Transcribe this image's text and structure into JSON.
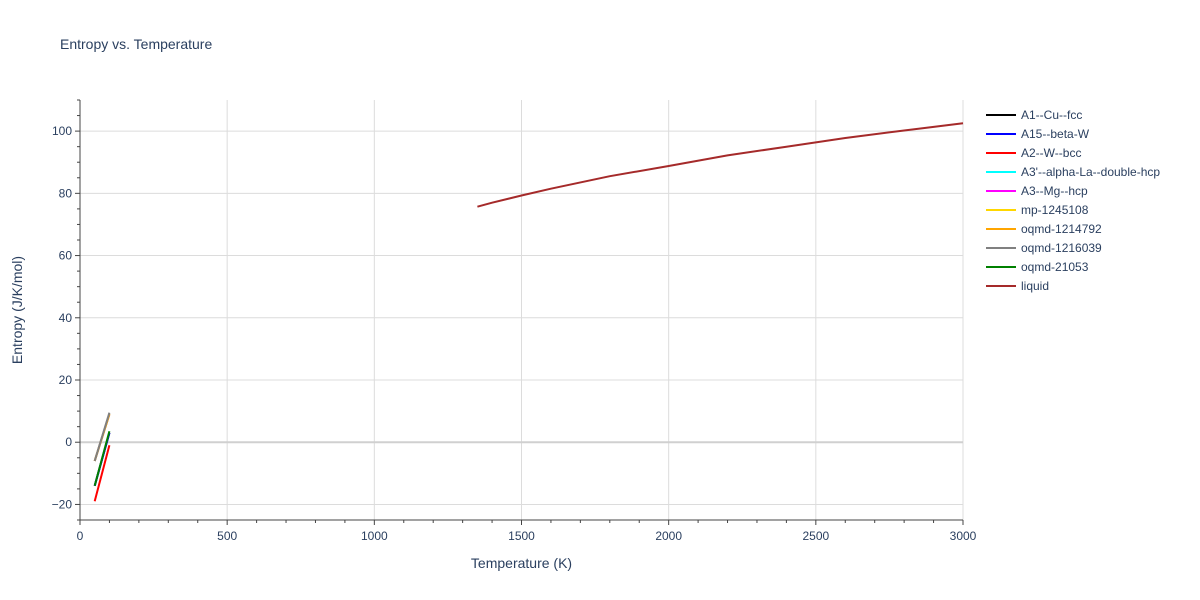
{
  "chart_data": {
    "type": "line",
    "title": "Entropy vs. Temperature",
    "xlabel": "Temperature (K)",
    "ylabel": "Entropy (J/K/mol)",
    "xlim": [
      0,
      3000
    ],
    "ylim": [
      -25,
      110
    ],
    "x_ticks": [
      0,
      500,
      1000,
      1500,
      2000,
      2500,
      3000
    ],
    "y_ticks": [
      -20,
      0,
      20,
      40,
      60,
      80,
      100
    ],
    "grid": true,
    "legend_position": "right",
    "series": [
      {
        "name": "A1--Cu--fcc",
        "color": "#000000",
        "x": [
          50,
          100
        ],
        "y": [
          -14,
          3
        ]
      },
      {
        "name": "A15--beta-W",
        "color": "#0000ff",
        "x": [
          50,
          100
        ],
        "y": [
          -14,
          3
        ]
      },
      {
        "name": "A2--W--bcc",
        "color": "#ff0000",
        "x": [
          50,
          100
        ],
        "y": [
          -19,
          -1
        ]
      },
      {
        "name": "A3'--alpha-La--double-hcp",
        "color": "#00ffff",
        "x": [
          50,
          100
        ],
        "y": [
          -6,
          9
        ]
      },
      {
        "name": "A3--Mg--hcp",
        "color": "#ff00ff",
        "x": [
          50,
          100
        ],
        "y": [
          -6,
          9
        ]
      },
      {
        "name": "mp-1245108",
        "color": "#ffd700",
        "x": [
          50,
          100
        ],
        "y": [
          -6,
          9
        ]
      },
      {
        "name": "oqmd-1214792",
        "color": "#ffa500",
        "x": [
          50,
          100
        ],
        "y": [
          -6,
          9
        ]
      },
      {
        "name": "oqmd-1216039",
        "color": "#808080",
        "x": [
          50,
          100
        ],
        "y": [
          -6,
          9.5
        ]
      },
      {
        "name": "oqmd-21053",
        "color": "#008000",
        "x": [
          50,
          100
        ],
        "y": [
          -14,
          3.5
        ]
      },
      {
        "name": "liquid",
        "color": "#a52a2a",
        "x": [
          1350,
          1400,
          1500,
          1600,
          1800,
          2000,
          2200,
          2400,
          2600,
          2800,
          3000
        ],
        "y": [
          75.7,
          77.0,
          79.3,
          81.5,
          85.5,
          88.8,
          92.2,
          95.0,
          97.8,
          100.2,
          102.5
        ]
      }
    ]
  }
}
